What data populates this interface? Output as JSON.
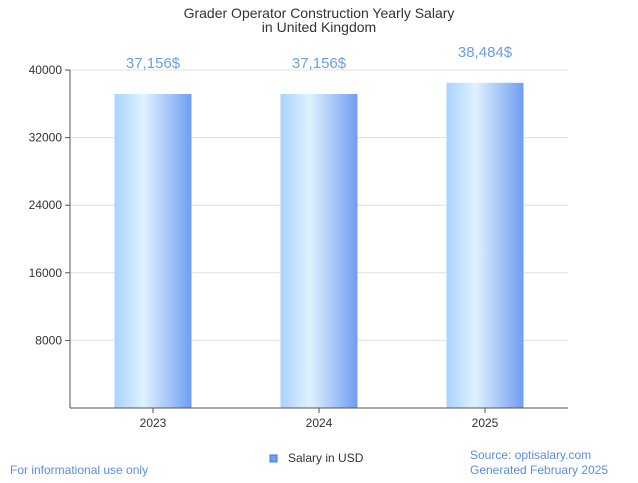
{
  "chart_data": {
    "type": "bar",
    "title_lines": [
      "Grader Operator Construction Yearly Salary",
      "in United Kingdom"
    ],
    "categories": [
      "2023",
      "2024",
      "2025"
    ],
    "series": [
      {
        "name": "Salary in USD",
        "values": [
          37156,
          37156,
          38484
        ],
        "labels": [
          "37,156$",
          "37,156$",
          "38,484$"
        ]
      }
    ],
    "yticks": [
      "8000",
      "16000",
      "24000",
      "32000",
      "40000"
    ],
    "ylim": [
      0,
      40000
    ],
    "xlabel": "",
    "ylabel": "",
    "grid": true,
    "legend_position": "bottom-center"
  },
  "footer": {
    "left": "For informational use only",
    "source": "Source: optisalary.com",
    "generated": "Generated February 2025"
  },
  "colors": {
    "bar_light": "#dff1ff",
    "bar_mid": "#a9d3ff",
    "bar_dark": "#6f9ef0",
    "label": "#6a9fe0",
    "footer": "#5b8fd6",
    "grid": "#e0e0e0",
    "axis": "#555555"
  }
}
